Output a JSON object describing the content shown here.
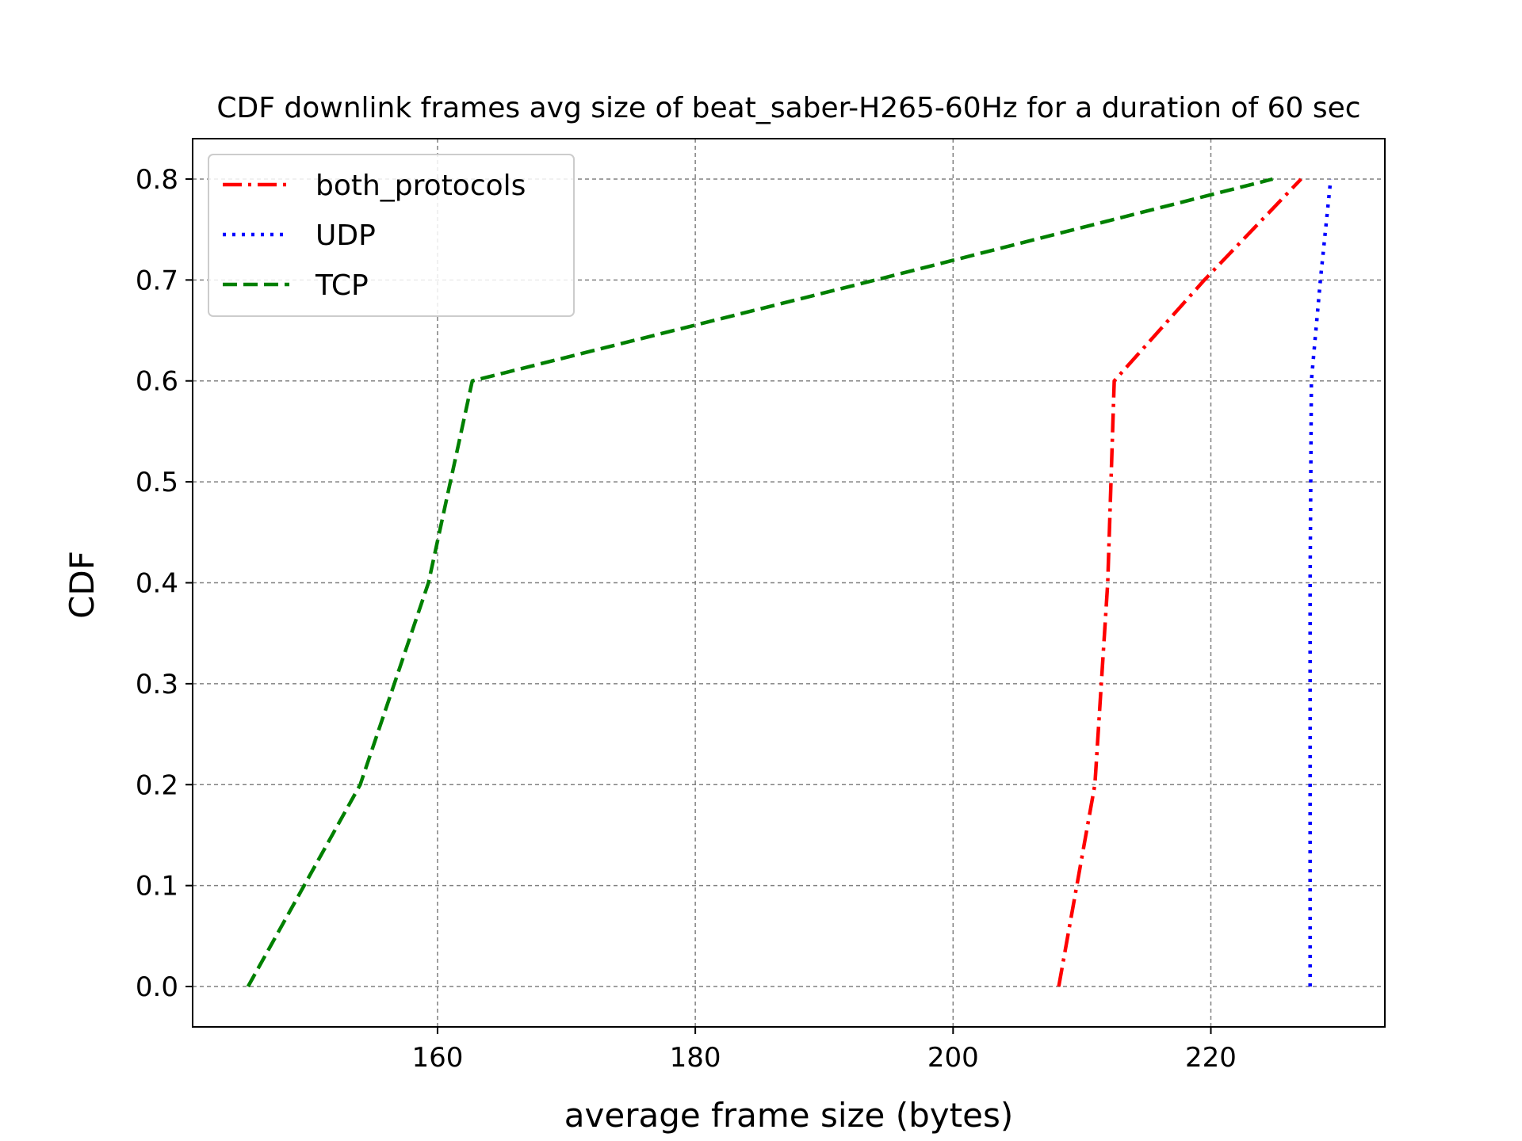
{
  "chart_data": {
    "type": "line",
    "title": "CDF downlink frames avg size of beat_saber-H265-60Hz for a duration of 60 sec",
    "xlabel": "average frame size (bytes)",
    "ylabel": "CDF",
    "xlim": [
      141.0,
      233.5
    ],
    "ylim": [
      -0.04,
      0.84
    ],
    "xticks": [
      160,
      180,
      200,
      220
    ],
    "yticks": [
      0.0,
      0.1,
      0.2,
      0.3,
      0.4,
      0.5,
      0.6,
      0.7,
      0.8
    ],
    "xtick_labels": [
      "160",
      "180",
      "200",
      "220"
    ],
    "ytick_labels": [
      "0.0",
      "0.1",
      "0.2",
      "0.3",
      "0.4",
      "0.5",
      "0.6",
      "0.7",
      "0.8"
    ],
    "grid": true,
    "legend_position": "upper-left",
    "series": [
      {
        "name": "both_protocols",
        "color": "#ff0000",
        "style": "dashdot",
        "points": [
          [
            208.2,
            0.0
          ],
          [
            211.0,
            0.2
          ],
          [
            212.0,
            0.4
          ],
          [
            212.5,
            0.6
          ],
          [
            219.5,
            0.7
          ],
          [
            227.0,
            0.8
          ]
        ]
      },
      {
        "name": "UDP",
        "color": "#0000ff",
        "style": "dotted",
        "points": [
          [
            227.7,
            0.0
          ],
          [
            227.7,
            0.2
          ],
          [
            227.7,
            0.4
          ],
          [
            227.8,
            0.6
          ],
          [
            228.5,
            0.7
          ],
          [
            229.3,
            0.8
          ]
        ]
      },
      {
        "name": "TCP",
        "color": "#008000",
        "style": "dashed",
        "points": [
          [
            145.3,
            0.0
          ],
          [
            154.0,
            0.2
          ],
          [
            159.3,
            0.4
          ],
          [
            162.7,
            0.6
          ],
          [
            194.0,
            0.7
          ],
          [
            224.8,
            0.8
          ]
        ]
      }
    ]
  }
}
